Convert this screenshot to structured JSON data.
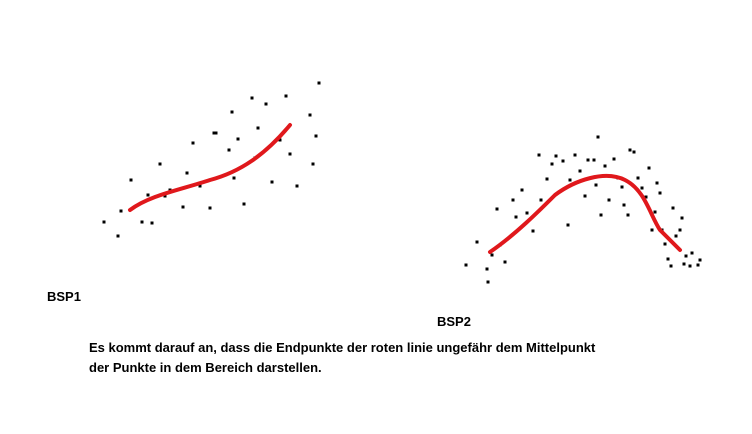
{
  "labels": {
    "bsp1": "BSP1",
    "bsp2": "BSP2"
  },
  "caption": {
    "line1": "Es kommt darauf an, dass die Endpunkte der roten linie ungefähr dem Mittelpunkt",
    "line2": "der Punkte in dem Bereich darstellen."
  }
}
